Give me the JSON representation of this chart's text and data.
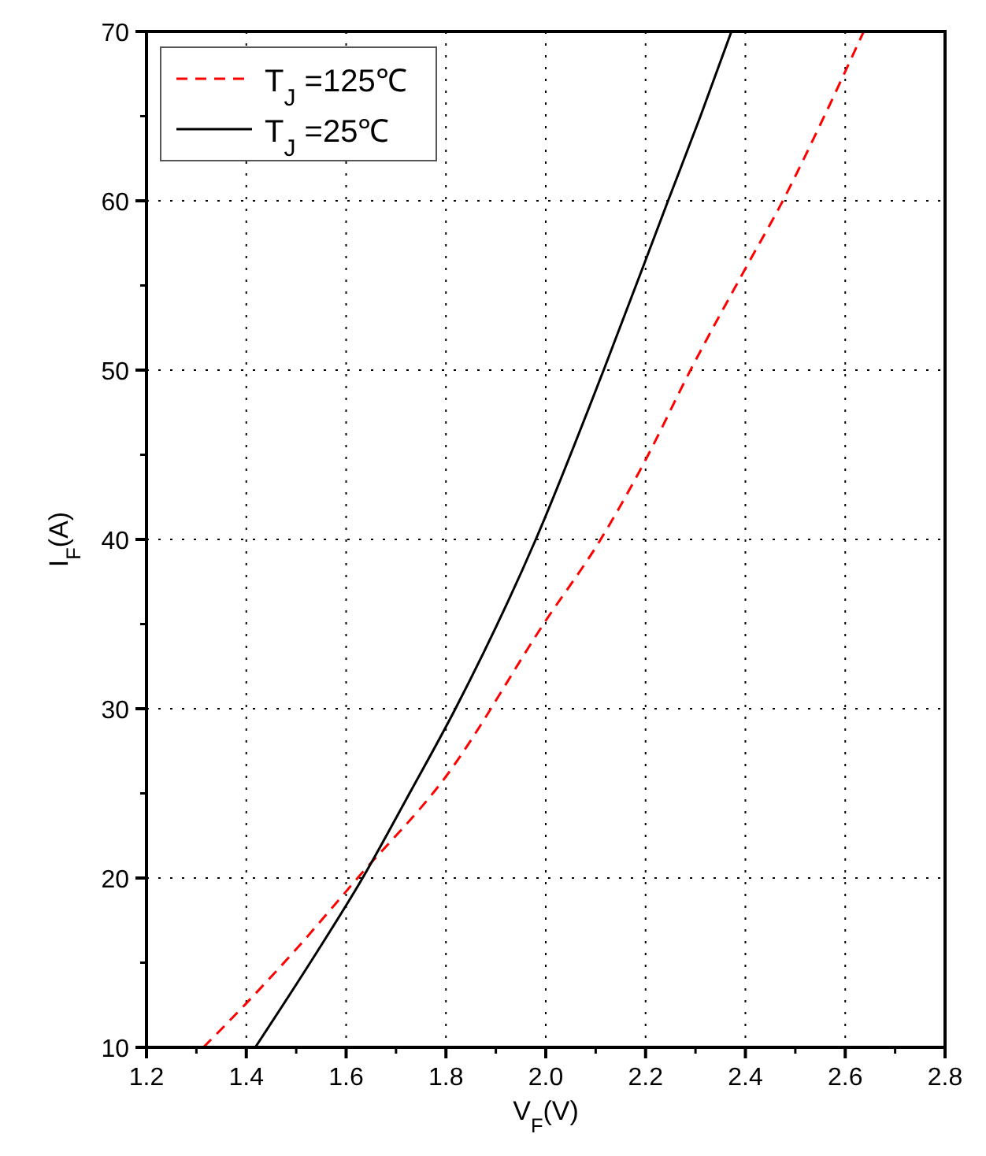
{
  "chart_data": {
    "type": "line",
    "xlabel": "V$_{F}$(V)",
    "ylabel": "I$_{F}$(A)",
    "xlim": [
      1.2,
      2.8
    ],
    "xticks": [
      {
        "value": 1.2,
        "label": "1.2"
      },
      {
        "value": 1.4,
        "label": "1.4"
      },
      {
        "value": 1.6,
        "label": "1.6"
      },
      {
        "value": 1.8,
        "label": "1.8"
      },
      {
        "value": 2.0,
        "label": "2.0"
      },
      {
        "value": 2.2,
        "label": "2.2"
      },
      {
        "value": 2.4,
        "label": "2.4"
      },
      {
        "value": 2.6,
        "label": "2.6"
      },
      {
        "value": 2.8,
        "label": "2.8"
      }
    ],
    "ylim": [
      10,
      70
    ],
    "yticks": [
      10,
      20,
      30,
      40,
      50,
      60,
      70
    ],
    "grid": true,
    "legend": "top left",
    "series": [
      {
        "name": "T$_{J}$ =125℃",
        "color": "#ff0000",
        "line_style": "dashed",
        "x": [
          1.314,
          1.4,
          1.5,
          1.623,
          1.8,
          2.0,
          2.11,
          2.2,
          2.29,
          2.4,
          2.475,
          2.55,
          2.637
        ],
        "values": [
          10,
          12.6,
          15.8,
          20,
          26,
          35.2,
          40,
          44.7,
          50,
          56,
          60,
          64.5,
          70
        ]
      },
      {
        "name": "T$_{J}$ =25℃",
        "color": "#000000",
        "line_style": "solid",
        "x": [
          1.418,
          1.528,
          1.633,
          1.727,
          1.819,
          1.98,
          2.116,
          2.245,
          2.31,
          2.372
        ],
        "values": [
          10,
          15,
          20,
          25,
          30,
          40,
          50,
          60,
          65,
          70
        ]
      }
    ]
  }
}
